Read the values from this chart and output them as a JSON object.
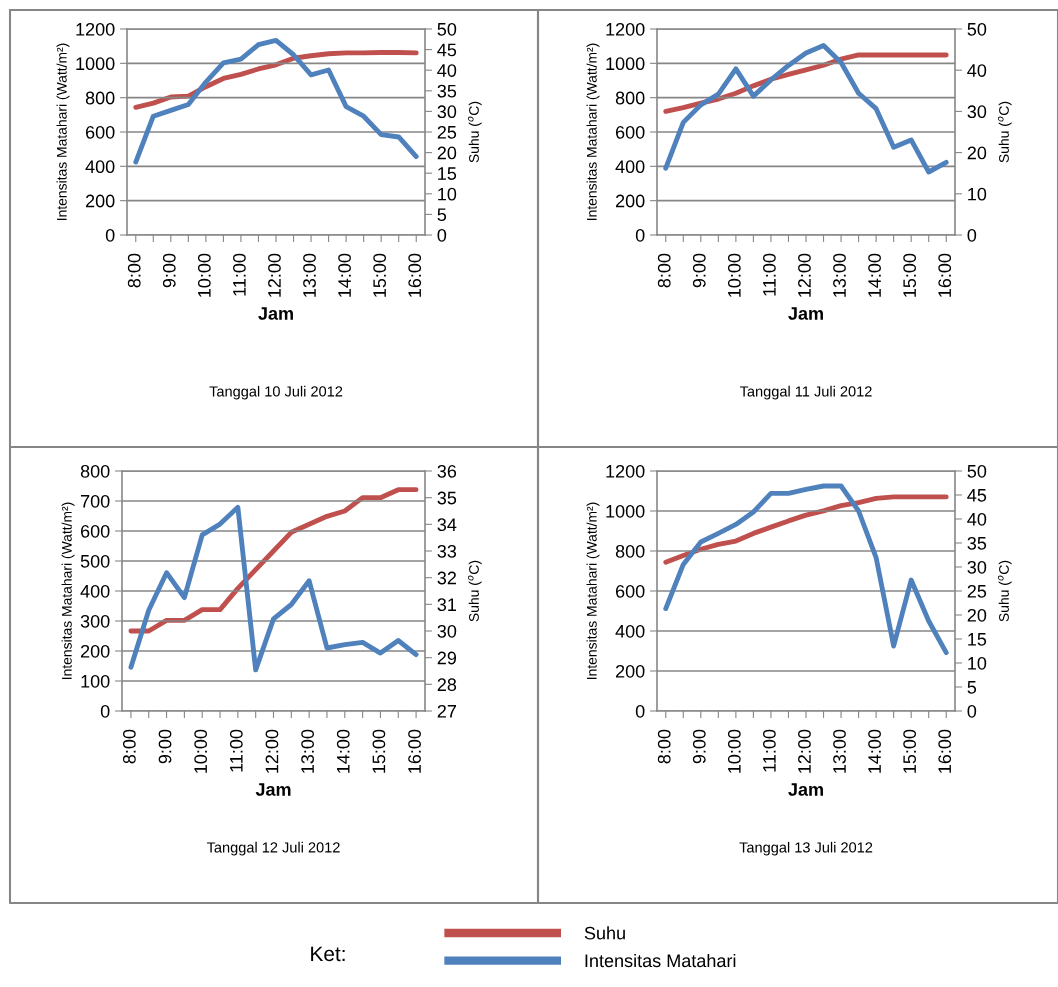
{
  "chart_data": [
    {
      "type": "line",
      "title": "Tanggal 10 Juli 2012",
      "xlabel": "Jam",
      "ylabel": "Intensitas Matahari (Watt/m²)",
      "y2label": "Suhu ($^{o}$C)",
      "legend_title": "Ket:",
      "legend": "bottom",
      "grid": "y",
      "categories": [
        "8:00",
        null,
        "9:00",
        null,
        "10:00",
        null,
        "11:00",
        null,
        "12:00",
        null,
        "13:00",
        null,
        "14:00",
        null,
        "15:00",
        null,
        "16:00"
      ],
      "ylim": [
        0,
        1200
      ],
      "yticks": [
        0,
        200,
        400,
        600,
        800,
        1000,
        1200
      ],
      "y2lim": [
        0,
        50
      ],
      "y2ticks": [
        0,
        5,
        10,
        15,
        20,
        25,
        30,
        35,
        40,
        45,
        50
      ],
      "series": [
        {
          "name": "Suhu",
          "color": "#c0504d",
          "axis": "y2",
          "values": [
            31,
            32,
            33.5,
            33.7,
            36,
            38,
            39,
            40.3,
            41.3,
            42.9,
            43.5,
            44,
            44.2,
            44.2,
            44.3,
            44.3,
            44.2
          ]
        },
        {
          "name": "Intensitas Matahari",
          "color": "#4f81bd",
          "values": [
            425,
            692,
            726,
            760,
            891,
            1003,
            1025,
            1109,
            1134,
            1050,
            933,
            961,
            748,
            692,
            585,
            571,
            457
          ]
        }
      ]
    },
    {
      "type": "line",
      "title": "Tanggal 11 Juli 2012",
      "xlabel": "Jam",
      "ylabel": "Intensitas Matahari (Watt/m²)",
      "y2label": "Suhu ($^{o}$C)",
      "grid": "y",
      "categories": [
        "8:00",
        null,
        "9:00",
        null,
        "10:00",
        null,
        "11:00",
        null,
        "12:00",
        null,
        "13:00",
        null,
        "14:00",
        null,
        "15:00",
        null,
        "16:00"
      ],
      "ylim": [
        0,
        1200
      ],
      "yticks": [
        0,
        200,
        400,
        600,
        800,
        1000,
        1200
      ],
      "y2lim": [
        0,
        50
      ],
      "y2ticks": [
        0,
        10,
        20,
        30,
        40,
        50
      ],
      "series": [
        {
          "color": "#c0504d",
          "axis": "y2",
          "values": [
            30,
            30.9,
            32,
            33,
            34.4,
            36.2,
            37.8,
            39,
            40.1,
            41.2,
            42.7,
            43.7,
            43.7,
            43.7,
            43.7,
            43.7,
            43.7
          ]
        },
        {
          "color": "#4f81bd",
          "values": [
            389,
            656,
            758,
            821,
            968,
            809,
            903,
            988,
            1060,
            1104,
            1005,
            826,
            736,
            511,
            554,
            367,
            423
          ]
        }
      ]
    },
    {
      "type": "line",
      "title": "Tanggal 12 Juli 2012",
      "xlabel": "Jam",
      "ylabel": "Intensitas Matahari (Watt/m²)",
      "y2label": "Suhu ($^{o}$C)",
      "grid": "y",
      "categories": [
        "8:00",
        null,
        "9:00",
        null,
        "10:00",
        null,
        "11:00",
        null,
        "12:00",
        null,
        "13:00",
        null,
        "14:00",
        null,
        "15:00",
        null,
        "16:00"
      ],
      "ylim": [
        0,
        800
      ],
      "yticks": [
        0,
        100,
        200,
        300,
        400,
        500,
        600,
        700,
        800
      ],
      "y2lim": [
        27,
        36
      ],
      "y2ticks": [
        27,
        28,
        29,
        30,
        31,
        32,
        33,
        34,
        35,
        36
      ],
      "series": [
        {
          "color": "#c0504d",
          "axis": "y2",
          "values": [
            30,
            30,
            30.4,
            30.4,
            30.8,
            30.8,
            31.6,
            32.3,
            33,
            33.7,
            34,
            34.3,
            34.5,
            35,
            35,
            35.3,
            35.3
          ]
        },
        {
          "color": "#4f81bd",
          "values": [
            146,
            336,
            461,
            378,
            587,
            623,
            679,
            137,
            307,
            355,
            434,
            210,
            221,
            229,
            193,
            235,
            188
          ]
        }
      ]
    },
    {
      "type": "line",
      "title": "Tanggal 13 Juli 2012",
      "xlabel": "Jam",
      "ylabel": "Intensitas Matahari (Watt/m²)",
      "y2label": "Suhu ($^{o}$C)",
      "grid": "y",
      "categories": [
        "8:00",
        null,
        "9:00",
        null,
        "10:00",
        null,
        "11:00",
        null,
        "12:00",
        null,
        "13:00",
        null,
        "14:00",
        null,
        "15:00",
        null,
        "16:00"
      ],
      "ylim": [
        0,
        1200
      ],
      "yticks": [
        0,
        200,
        400,
        600,
        800,
        1000,
        1200
      ],
      "y2lim": [
        0,
        50
      ],
      "y2ticks": [
        0,
        5,
        10,
        15,
        20,
        25,
        30,
        35,
        40,
        45,
        50
      ],
      "series": [
        {
          "color": "#c0504d",
          "axis": "y2",
          "values": [
            31,
            32.4,
            33.7,
            34.7,
            35.4,
            37,
            38.3,
            39.6,
            40.8,
            41.7,
            42.8,
            43.4,
            44.3,
            44.6,
            44.6,
            44.6,
            44.6
          ]
        },
        {
          "color": "#4f81bd",
          "values": [
            512,
            733,
            845,
            888,
            933,
            995,
            1088,
            1088,
            1108,
            1125,
            1125,
            1000,
            767,
            325,
            655,
            450,
            292
          ]
        }
      ]
    }
  ]
}
